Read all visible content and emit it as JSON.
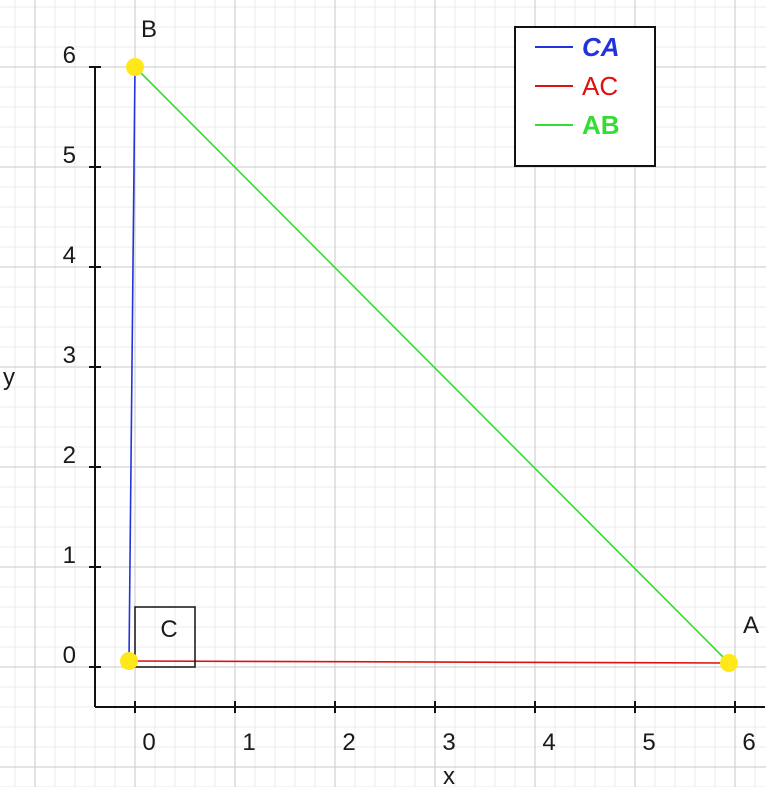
{
  "chart_data": {
    "type": "line",
    "title": "",
    "xlabel": "x",
    "ylabel": "y",
    "xlim": [
      -0.4,
      6.3
    ],
    "ylim": [
      -0.4,
      6.0
    ],
    "x_ticks": [
      "0",
      "1",
      "2",
      "3",
      "4",
      "5",
      "6"
    ],
    "y_ticks": [
      "0",
      "1",
      "2",
      "3",
      "4",
      "5",
      "6"
    ],
    "grid": true,
    "legend_position": "top-right",
    "points": [
      {
        "name": "A",
        "x": 5.94,
        "y": 0.04
      },
      {
        "name": "B",
        "x": 0.0,
        "y": 6.0
      },
      {
        "name": "C",
        "x": -0.06,
        "y": 0.06
      }
    ],
    "series": [
      {
        "name": "CA",
        "color": "#2233dd",
        "bold": true,
        "italic": true,
        "from": "C",
        "to": "B"
      },
      {
        "name": "AC",
        "color": "#dd1111",
        "bold": false,
        "italic": false,
        "from": "C",
        "to": "A"
      },
      {
        "name": "AB",
        "color": "#33dd33",
        "bold": true,
        "italic": false,
        "from": "B",
        "to": "A"
      }
    ],
    "right_angle_marker": "C",
    "point_color": "#ffe81a"
  }
}
